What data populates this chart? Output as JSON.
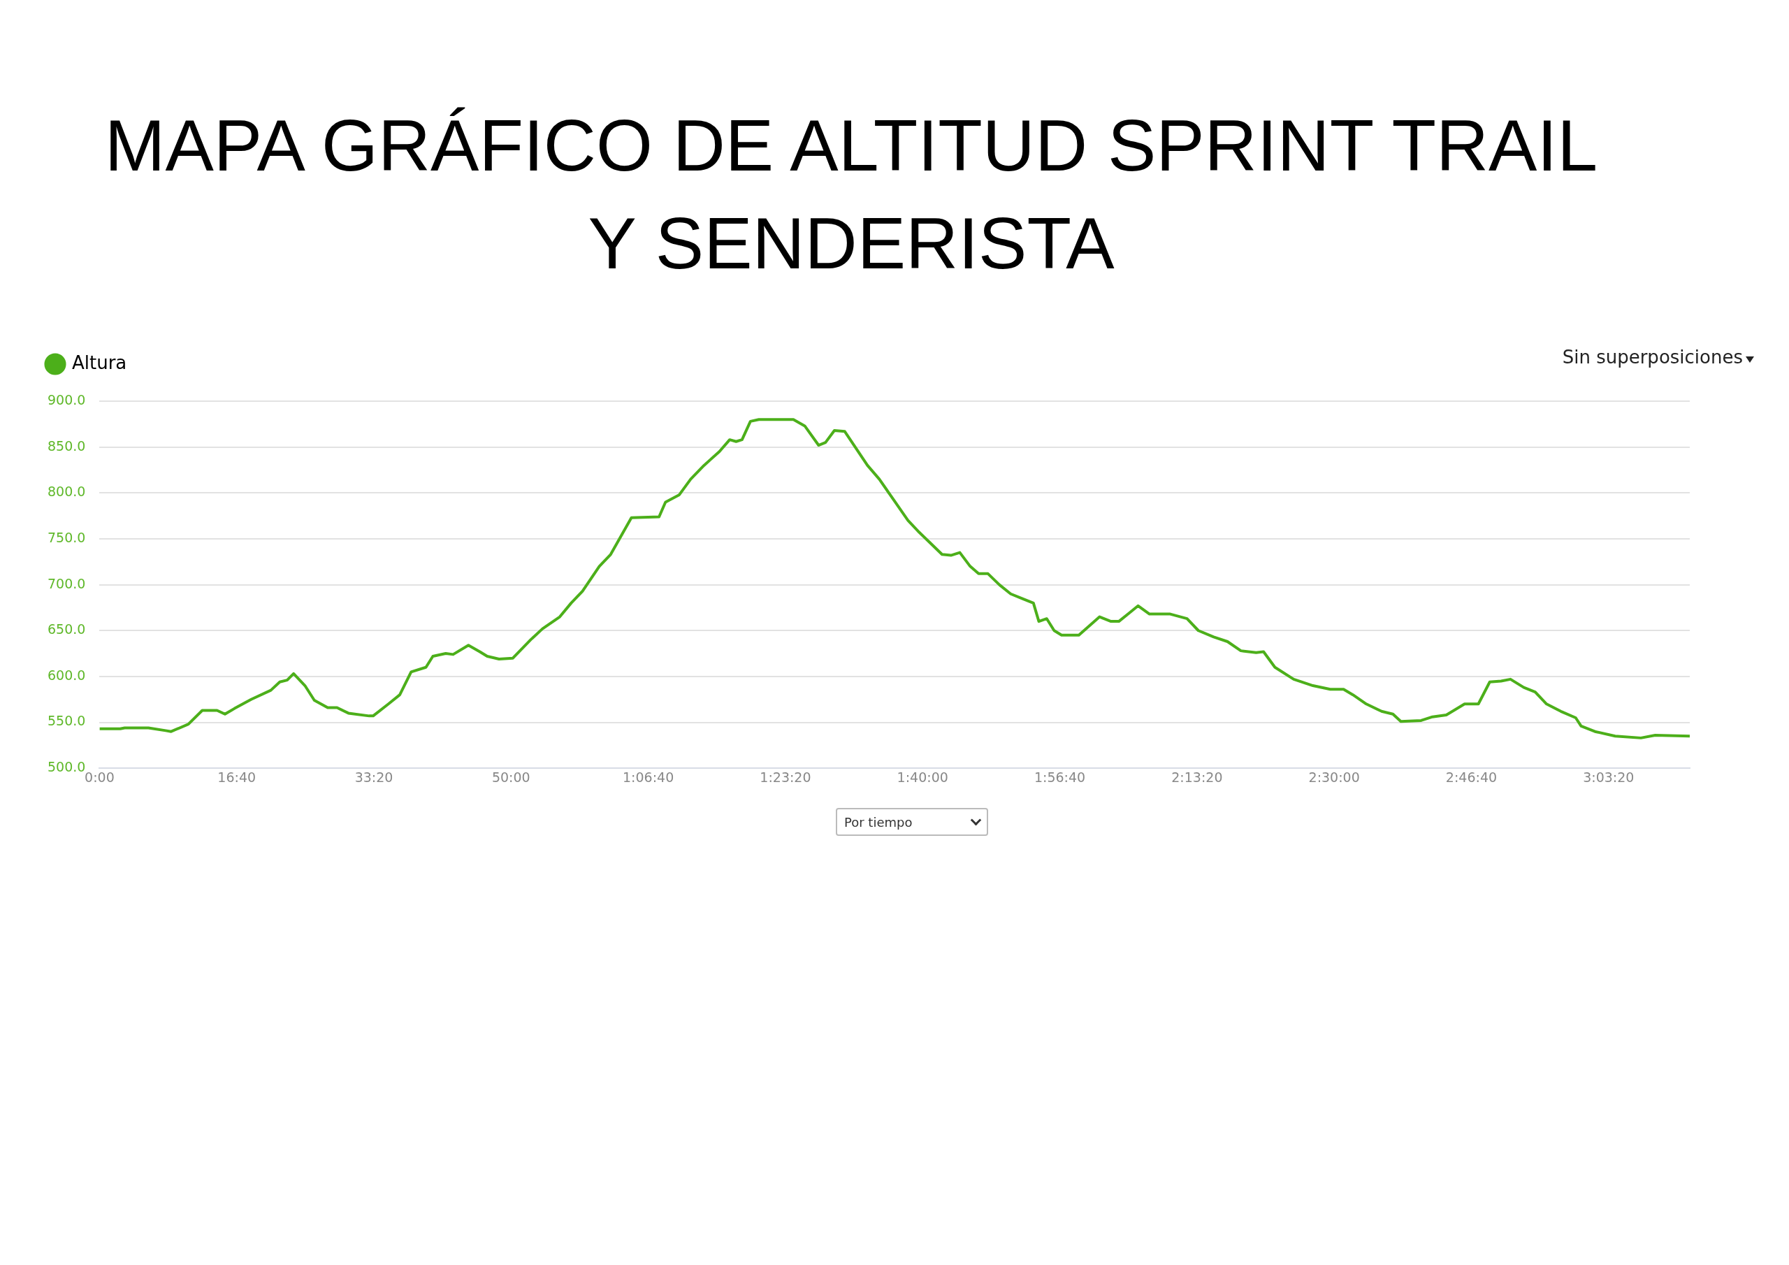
{
  "chart_data": {
    "type": "line",
    "title": "MAPA GRÁFICO DE ALTITUD SPRINT TRAIL Y SENDERISTA",
    "annotations": [
      "Sin superposiciones",
      "Por tiempo"
    ],
    "legend": "top left",
    "grid": "y",
    "marker": "none",
    "line_style": "solid",
    "x": [
      0,
      2.52,
      3.06,
      5.94,
      8.04,
      8.7,
      10.8,
      12.48,
      14.28,
      15.24,
      16.38,
      18.42,
      20.82,
      21.9,
      22.8,
      23.58,
      24.96,
      26.1,
      27.72,
      28.86,
      30.24,
      32.76,
      33.24,
      35.1,
      36.48,
      37.86,
      39.66,
      40.5,
      42.06,
      42.96,
      44.82,
      46.2,
      47.1,
      48.54,
      50.22,
      52.38,
      53.82,
      55.92,
      57.3,
      58.68,
      60.72,
      62.1,
      64.62,
      67.98,
      68.76,
      70.44,
      71.82,
      73.44,
      75.3,
      76.56,
      77.34,
      78.06,
      79.08,
      80.1,
      84.3,
      85.68,
      87.36,
      88.2,
      89.28,
      90.54,
      93.3,
      94.74,
      98.22,
      99.6,
      100.98,
      102.36,
      103.44,
      104.52,
      105.78,
      106.8,
      107.94,
      109.32,
      110.7,
      112.08,
      113.46,
      114.12,
      115.08,
      115.98,
      116.88,
      118.98,
      121.5,
      122.88,
      123.84,
      125.22,
      126.18,
      127.56,
      130.08,
      132.12,
      133.5,
      135.36,
      137.04,
      138.66,
      140.52,
      141.42,
      142.8,
      145.08,
      147.42,
      149.52,
      151.14,
      152.28,
      153.9,
      155.76,
      157.14,
      158.1,
      160.56,
      161.94,
      163.62,
      165.84,
      167.52,
      168.9,
      170.28,
      171.42,
      173.04,
      174.42,
      175.8,
      177.54,
      179.34,
      180,
      181.68,
      184.14,
      187.26,
      189,
      193.2
    ],
    "series": [
      {
        "name": "Altura",
        "color": "#4caf1a",
        "values": [
          543,
          543,
          544,
          544,
          541,
          540,
          548,
          563,
          563,
          559,
          565,
          575,
          585,
          594,
          596,
          603,
          590,
          574,
          566,
          566,
          560,
          557,
          557,
          570,
          580,
          605,
          610,
          622,
          625,
          624,
          634,
          627,
          622,
          619,
          620,
          640,
          652,
          665,
          680,
          693,
          720,
          733,
          773,
          774,
          790,
          798,
          815,
          830,
          845,
          858,
          856,
          858,
          878,
          880,
          880,
          873,
          852,
          855,
          868,
          867,
          830,
          815,
          770,
          757,
          745,
          733,
          732,
          735,
          720,
          712,
          712,
          700,
          690,
          685,
          680,
          660,
          663,
          650,
          645,
          645,
          665,
          660,
          660,
          670,
          677,
          668,
          668,
          663,
          650,
          643,
          638,
          628,
          626,
          627,
          610,
          597,
          590,
          586,
          586,
          580,
          570,
          562,
          559,
          551,
          552,
          556,
          558,
          570,
          570,
          594,
          595,
          597,
          588,
          583,
          570,
          562,
          555,
          546,
          540,
          535,
          533,
          536,
          535
        ]
      }
    ],
    "xlim": [
      0,
      193.2
    ],
    "xticks": [
      {
        "value": 0,
        "label": "0:00"
      },
      {
        "value": 16.667,
        "label": "16:40"
      },
      {
        "value": 33.333,
        "label": "33:20"
      },
      {
        "value": 50,
        "label": "50:00"
      },
      {
        "value": 66.667,
        "label": "1:06:40"
      },
      {
        "value": 83.333,
        "label": "1:23:20"
      },
      {
        "value": 100,
        "label": "1:40:00"
      },
      {
        "value": 116.667,
        "label": "1:56:40"
      },
      {
        "value": 133.333,
        "label": "2:13:20"
      },
      {
        "value": 150,
        "label": "2:30:00"
      },
      {
        "value": 166.667,
        "label": "2:46:40"
      },
      {
        "value": 183.333,
        "label": "3:03:20"
      }
    ],
    "ylim": [
      500,
      900
    ],
    "yticks": [
      {
        "value": 500,
        "label": "500.0"
      },
      {
        "value": 550,
        "label": "550.0"
      },
      {
        "value": 600,
        "label": "600.0"
      },
      {
        "value": 650,
        "label": "650.0"
      },
      {
        "value": 700,
        "label": "700.0"
      },
      {
        "value": 750,
        "label": "750.0"
      },
      {
        "value": 800,
        "label": "800.0"
      },
      {
        "value": 850,
        "label": "850.0"
      },
      {
        "value": 900,
        "label": "900.0"
      }
    ]
  }
}
